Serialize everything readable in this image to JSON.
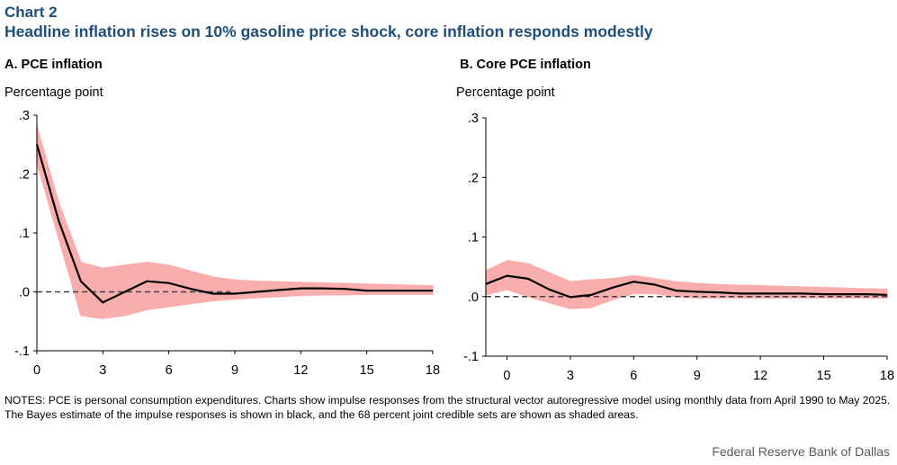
{
  "header": {
    "chart_label": "Chart 2",
    "title": "Headline inflation rises on 10% gasoline price shock, core inflation responds modestly"
  },
  "notes": "NOTES: PCE is personal consumption expenditures.  Charts show impulse responses from the structural vector autoregressive model using monthly data from April 1990 to May 2025. The Bayes estimate of the impulse responses is shown in black, and the 68 percent joint credible sets are shown as shaded areas.",
  "source": "Federal Reserve Bank of Dallas",
  "colors": {
    "band": "#f9a7a7",
    "line": "#000000",
    "zero_line": "#404040",
    "axis": "#000000"
  },
  "chart_data": [
    {
      "type": "line",
      "title": "A. PCE inflation",
      "ylabel": "Percentage point",
      "xlabel": "",
      "xlim": [
        0,
        18
      ],
      "ylim": [
        -0.1,
        0.3
      ],
      "xticks": [
        0,
        3,
        6,
        9,
        12,
        15,
        18
      ],
      "xtick_labels": [
        "0",
        "3",
        "6",
        "9",
        "12",
        "15",
        "18"
      ],
      "yticks": [
        -0.1,
        0.0,
        0.1,
        0.2,
        0.3
      ],
      "ytick_labels": [
        "-.1",
        ".0",
        ".1",
        ".2",
        ".3"
      ],
      "series": [
        {
          "name": "Bayes estimate",
          "x": [
            0,
            1,
            2,
            3,
            4,
            5,
            6,
            7,
            8,
            9,
            10,
            11,
            12,
            13,
            14,
            15,
            16,
            17,
            18
          ],
          "values": [
            0.25,
            0.12,
            0.018,
            -0.018,
            0.0,
            0.018,
            0.015,
            0.005,
            -0.003,
            -0.003,
            0.0,
            0.003,
            0.006,
            0.006,
            0.005,
            0.002,
            0.002,
            0.002,
            0.002
          ]
        },
        {
          "name": "68 percent joint credible set",
          "x": [
            0,
            1,
            2,
            3,
            4,
            5,
            6,
            7,
            8,
            9,
            10,
            11,
            12,
            13,
            14,
            15,
            16,
            17,
            18
          ],
          "upper": [
            0.28,
            0.15,
            0.05,
            0.04,
            0.045,
            0.05,
            0.045,
            0.035,
            0.025,
            0.02,
            0.018,
            0.017,
            0.016,
            0.015,
            0.014,
            0.013,
            0.012,
            0.011,
            0.01
          ],
          "lower": [
            0.22,
            0.09,
            -0.04,
            -0.045,
            -0.04,
            -0.03,
            -0.025,
            -0.02,
            -0.015,
            -0.012,
            -0.01,
            -0.008,
            -0.006,
            -0.005,
            -0.005,
            -0.004,
            -0.004,
            -0.004,
            -0.004
          ]
        },
        {
          "name": "zero reference",
          "x": [
            0,
            8.8
          ],
          "values": [
            0.0,
            0.0
          ]
        }
      ]
    },
    {
      "type": "line",
      "title": "B. Core PCE inflation",
      "ylabel": "Percentage point",
      "xlabel": "",
      "xlim": [
        -1,
        18
      ],
      "ylim": [
        -0.1,
        0.3
      ],
      "xticks": [
        0,
        3,
        6,
        9,
        12,
        15,
        18
      ],
      "xtick_labels": [
        "0",
        "3",
        "6",
        "9",
        "12",
        "15",
        "18"
      ],
      "yticks": [
        -0.1,
        0.0,
        0.1,
        0.2,
        0.3
      ],
      "ytick_labels": [
        "-.1",
        ".0",
        ".1",
        ".2",
        ".3"
      ],
      "series": [
        {
          "name": "Bayes estimate",
          "x": [
            -1,
            0,
            1,
            2,
            3,
            4,
            5,
            6,
            7,
            8,
            9,
            10,
            11,
            12,
            13,
            14,
            15,
            16,
            17,
            18
          ],
          "values": [
            0.021,
            0.035,
            0.03,
            0.012,
            -0.001,
            0.003,
            0.015,
            0.025,
            0.02,
            0.01,
            0.008,
            0.007,
            0.005,
            0.005,
            0.005,
            0.005,
            0.004,
            0.004,
            0.004,
            0.003
          ]
        },
        {
          "name": "68 percent joint credible set",
          "x": [
            -1,
            0,
            1,
            2,
            3,
            4,
            5,
            6,
            7,
            8,
            9,
            10,
            11,
            12,
            13,
            14,
            15,
            16,
            17,
            18
          ],
          "upper": [
            0.043,
            0.06,
            0.055,
            0.04,
            0.025,
            0.028,
            0.03,
            0.035,
            0.03,
            0.025,
            0.022,
            0.02,
            0.019,
            0.018,
            0.017,
            0.016,
            0.015,
            0.014,
            0.013,
            0.012
          ],
          "lower": [
            0.003,
            0.012,
            0.0,
            -0.01,
            -0.02,
            -0.018,
            -0.005,
            0.005,
            0.005,
            0.0,
            -0.002,
            -0.002,
            -0.002,
            -0.002,
            -0.002,
            -0.002,
            -0.002,
            -0.002,
            -0.002,
            -0.002
          ]
        },
        {
          "name": "zero reference",
          "x": [
            -1,
            18
          ],
          "values": [
            0.0,
            0.0
          ]
        }
      ]
    }
  ]
}
